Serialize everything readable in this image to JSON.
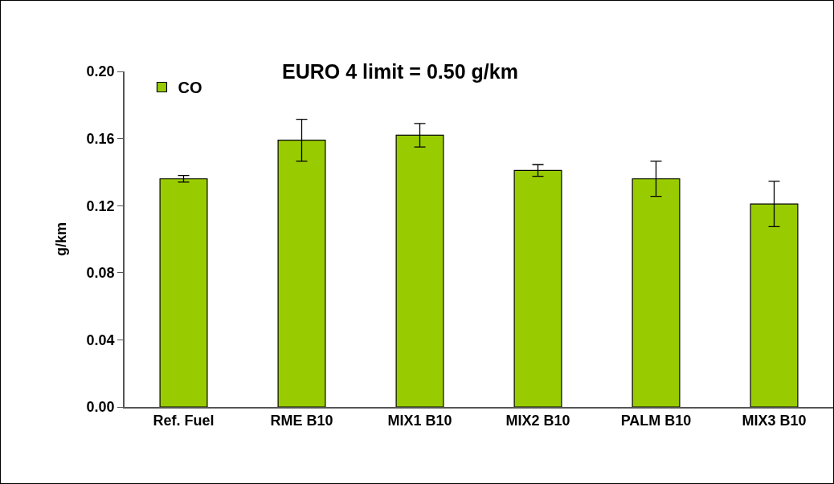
{
  "chart_data": {
    "type": "bar",
    "ylabel": "g/km",
    "categories": [
      "Ref. Fuel",
      "RME B10",
      "MIX1 B10",
      "MIX2 B10",
      "PALM B10",
      "MIX3 B10"
    ],
    "series": [
      {
        "name": "CO",
        "color": "#99cc00",
        "values": [
          0.136,
          0.159,
          0.162,
          0.141,
          0.136,
          0.121
        ],
        "errors": [
          0.002,
          0.0125,
          0.007,
          0.0035,
          0.0105,
          0.0135
        ]
      }
    ],
    "annotations": [
      "EURO 4 limit = 0.50 g/km"
    ],
    "ylim": [
      0,
      0.2
    ],
    "yticks": [
      {
        "value": 0,
        "label": "0.00"
      },
      {
        "value": 0.04,
        "label": "0.04"
      },
      {
        "value": 0.08,
        "label": "0.08"
      },
      {
        "value": 0.12,
        "label": "0.12"
      },
      {
        "value": 0.16,
        "label": "0.16"
      },
      {
        "value": 0.2,
        "label": "0.20"
      }
    ],
    "legend": "top left",
    "grid": false
  }
}
